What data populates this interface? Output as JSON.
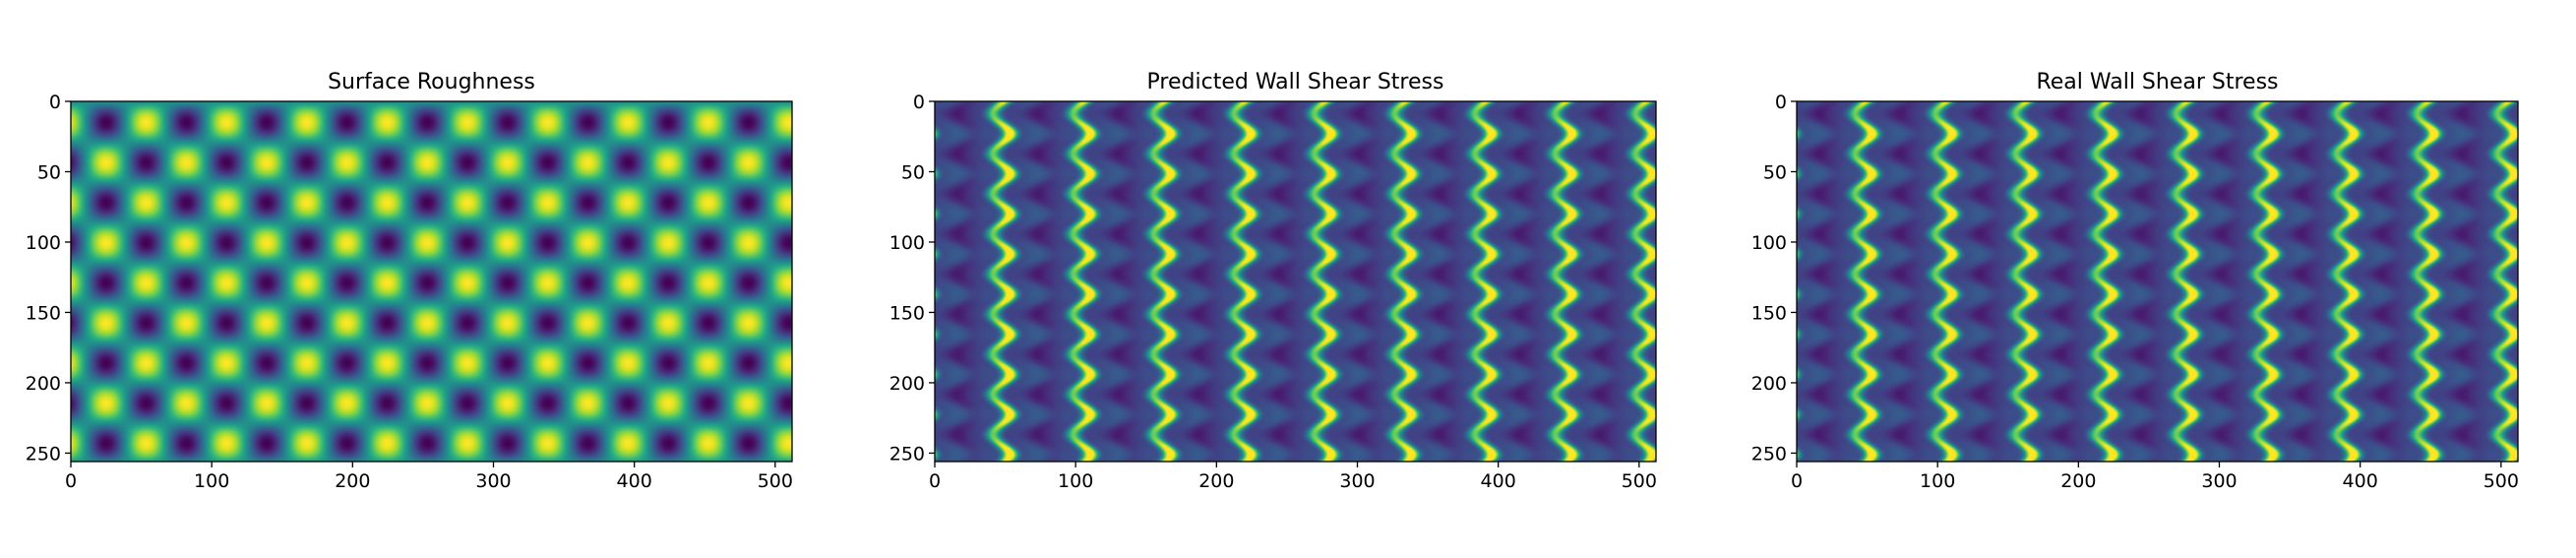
{
  "chart_data": [
    {
      "type": "heatmap",
      "title": "Surface Roughness",
      "pattern": "roughness",
      "colormap": "viridis",
      "image_shape": [
        256,
        512
      ],
      "xlim": [
        0,
        512
      ],
      "ylim": [
        256,
        0
      ],
      "xticks": [
        0,
        100,
        200,
        300,
        400,
        500
      ],
      "yticks": [
        0,
        50,
        100,
        150,
        200,
        250
      ],
      "xtick_labels": [
        "0",
        "100",
        "200",
        "300",
        "400",
        "500"
      ],
      "ytick_labels": [
        "0",
        "50",
        "100",
        "150",
        "200",
        "250"
      ],
      "pattern_period_x": 57,
      "pattern_period_y": 57,
      "xlabel": "",
      "ylabel": ""
    },
    {
      "type": "heatmap",
      "title": "Predicted Wall Shear Stress",
      "pattern": "shear",
      "colormap": "viridis",
      "image_shape": [
        256,
        512
      ],
      "xlim": [
        0,
        512
      ],
      "ylim": [
        256,
        0
      ],
      "xticks": [
        0,
        100,
        200,
        300,
        400,
        500
      ],
      "yticks": [
        0,
        50,
        100,
        150,
        200,
        250
      ],
      "xtick_labels": [
        "0",
        "100",
        "200",
        "300",
        "400",
        "500"
      ],
      "ytick_labels": [
        "0",
        "50",
        "100",
        "150",
        "200",
        "250"
      ],
      "pattern_period_x": 57,
      "pattern_period_y": 57,
      "xlabel": "",
      "ylabel": ""
    },
    {
      "type": "heatmap",
      "title": "Real Wall Shear Stress",
      "pattern": "shear",
      "colormap": "viridis",
      "image_shape": [
        256,
        512
      ],
      "xlim": [
        0,
        512
      ],
      "ylim": [
        256,
        0
      ],
      "xticks": [
        0,
        100,
        200,
        300,
        400,
        500
      ],
      "yticks": [
        0,
        50,
        100,
        150,
        200,
        250
      ],
      "xtick_labels": [
        "0",
        "100",
        "200",
        "300",
        "400",
        "500"
      ],
      "ytick_labels": [
        "0",
        "50",
        "100",
        "150",
        "200",
        "250"
      ],
      "pattern_period_x": 57,
      "pattern_period_y": 57,
      "xlabel": "",
      "ylabel": ""
    }
  ]
}
